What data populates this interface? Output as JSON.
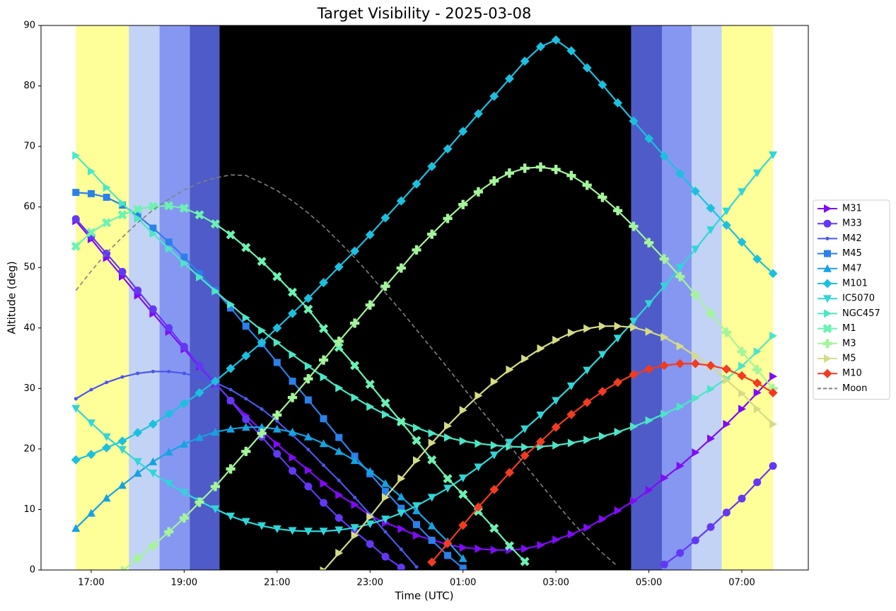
{
  "chart_data": {
    "type": "line",
    "title": "Target Visibility - 2025-03-08",
    "x_label": "Time (UTC)",
    "y_label": "Altitude (deg)",
    "xlim": [
      15.92,
      32.43
    ],
    "ylim": [
      0,
      90
    ],
    "xticks": [
      {
        "value": 17,
        "label": "17:00"
      },
      {
        "value": 19,
        "label": "19:00"
      },
      {
        "value": 21,
        "label": "21:00"
      },
      {
        "value": 23,
        "label": "23:00"
      },
      {
        "value": 25,
        "label": "01:00"
      },
      {
        "value": 27,
        "label": "03:00"
      },
      {
        "value": 29,
        "label": "05:00"
      },
      {
        "value": 31,
        "label": "07:00"
      }
    ],
    "yticks": [
      0,
      10,
      20,
      30,
      40,
      50,
      60,
      70,
      80,
      90
    ],
    "grid": false,
    "legend": "right",
    "shading": [
      {
        "start": 16.67,
        "end": 17.81,
        "color": "#ffff99"
      },
      {
        "start": 17.81,
        "end": 18.47,
        "color": "#c3d3f5"
      },
      {
        "start": 18.47,
        "end": 19.12,
        "color": "#8697f2"
      },
      {
        "start": 19.12,
        "end": 19.76,
        "color": "#4f5bc8"
      },
      {
        "start": 19.76,
        "end": 28.62,
        "color": "#000000"
      },
      {
        "start": 28.62,
        "end": 29.28,
        "color": "#4f5bc8"
      },
      {
        "start": 29.28,
        "end": 29.92,
        "color": "#8697f2"
      },
      {
        "start": 29.92,
        "end": 30.57,
        "color": "#c3d3f5"
      },
      {
        "start": 30.57,
        "end": 31.67,
        "color": "#ffff99"
      }
    ],
    "x": [
      16.67,
      17,
      17.33,
      17.67,
      18,
      18.33,
      18.67,
      19,
      19.33,
      19.67,
      20,
      20.33,
      20.67,
      21,
      21.33,
      21.67,
      22,
      22.33,
      22.67,
      23,
      23.33,
      23.67,
      24,
      24.33,
      24.67,
      25,
      25.33,
      25.67,
      26,
      26.33,
      26.67,
      27,
      27.33,
      27.67,
      28,
      28.33,
      28.67,
      29,
      29.33,
      29.67,
      30,
      30.33,
      30.67,
      31,
      31.33,
      31.67
    ],
    "series": [
      {
        "name": "M31",
        "color": "#7f0cf5",
        "marker": ">",
        "values": [
          57.7,
          54.7,
          51.6,
          48.5,
          45.4,
          42.4,
          39.4,
          36.5,
          33.6,
          30.8,
          28.1,
          25.5,
          23.0,
          20.8,
          18.6,
          16.5,
          14.3,
          12.4,
          10.8,
          9.0,
          7.8,
          6.8,
          5.7,
          5.0,
          4.2,
          3.7,
          3.5,
          3.3,
          3.3,
          3.5,
          4.1,
          5.0,
          5.9,
          7.0,
          8.4,
          9.8,
          11.4,
          13.2,
          15.2,
          17.2,
          19.4,
          21.7,
          24.1,
          26.6,
          29.3,
          32.0
        ]
      },
      {
        "name": "M33",
        "color": "#6338f5",
        "marker": "o",
        "values": [
          58.0,
          55.2,
          52.3,
          49.3,
          46.2,
          43.1,
          40.0,
          36.9,
          33.8,
          30.9,
          28.0,
          24.9,
          22.0,
          19.2,
          16.4,
          13.8,
          11.1,
          8.6,
          6.4,
          4.3,
          2.2,
          0.4,
          null,
          null,
          null,
          null,
          null,
          null,
          null,
          null,
          null,
          null,
          null,
          null,
          null,
          null,
          null,
          null,
          0.9,
          2.8,
          4.9,
          7.1,
          9.5,
          11.8,
          14.5,
          17.2
        ]
      },
      {
        "name": "M42",
        "color": "#4a56ea",
        "marker": ".",
        "values": [
          28.3,
          29.8,
          31.0,
          31.9,
          32.5,
          32.8,
          32.8,
          32.5,
          31.9,
          31.0,
          29.8,
          28.3,
          26.6,
          24.6,
          22.3,
          19.9,
          17.3,
          14.8,
          12.0,
          9.2,
          6.3,
          3.4,
          0.5,
          null,
          null,
          null,
          null,
          null,
          null,
          null,
          null,
          null,
          null,
          null,
          null,
          null,
          null,
          null,
          null,
          null,
          null,
          null,
          null,
          null,
          null,
          null
        ]
      },
      {
        "name": "M45",
        "color": "#2b80ea",
        "marker": "s",
        "values": [
          62.4,
          62.2,
          61.6,
          60.3,
          58.6,
          56.5,
          54.2,
          51.7,
          49.0,
          46.2,
          43.3,
          40.3,
          37.4,
          34.3,
          31.2,
          28.1,
          25.0,
          21.9,
          18.8,
          15.9,
          13.0,
          10.2,
          7.5,
          4.9,
          2.4,
          0.3,
          null,
          null,
          null,
          null,
          null,
          null,
          null,
          null,
          null,
          null,
          null,
          null,
          null,
          null,
          null,
          null,
          null,
          null,
          null,
          null
        ]
      },
      {
        "name": "M47",
        "color": "#16a2e2",
        "marker": "^",
        "values": [
          6.9,
          9.4,
          11.9,
          14.0,
          16.0,
          17.9,
          19.5,
          20.8,
          21.9,
          22.8,
          23.3,
          23.6,
          23.6,
          23.3,
          22.8,
          22.0,
          20.9,
          19.6,
          18.1,
          16.3,
          14.3,
          12.1,
          9.8,
          7.3,
          4.7,
          1.9,
          null,
          null,
          null,
          null,
          null,
          null,
          null,
          null,
          null,
          null,
          null,
          null,
          null,
          null,
          null,
          null,
          null,
          null,
          null,
          null
        ]
      },
      {
        "name": "M101",
        "color": "#1cc0df",
        "marker": "D",
        "values": [
          18.2,
          19.1,
          20.2,
          21.3,
          22.7,
          24.1,
          25.8,
          27.5,
          29.3,
          31.2,
          33.3,
          35.4,
          37.6,
          40.0,
          42.4,
          44.9,
          47.5,
          50.1,
          52.7,
          55.4,
          58.2,
          61.0,
          63.8,
          66.7,
          69.6,
          72.5,
          75.4,
          78.3,
          81.2,
          84.1,
          86.5,
          87.6,
          85.8,
          83.0,
          80.2,
          77.2,
          74.2,
          71.3,
          68.4,
          65.5,
          62.6,
          59.8,
          57.0,
          54.2,
          51.4,
          49.0
        ]
      },
      {
        "name": "IC5070",
        "color": "#30d6d8",
        "marker": "v",
        "values": [
          26.7,
          24.3,
          22.0,
          19.9,
          17.9,
          16.0,
          14.3,
          12.8,
          11.4,
          10.1,
          8.9,
          8.0,
          7.3,
          6.8,
          6.5,
          6.4,
          6.4,
          6.6,
          7.0,
          7.6,
          8.4,
          9.4,
          10.6,
          12.0,
          13.5,
          15.2,
          17.0,
          19.0,
          21.1,
          23.3,
          25.6,
          28.0,
          30.4,
          33.0,
          35.6,
          38.3,
          41.1,
          44.0,
          46.9,
          50.0,
          53.0,
          56.2,
          59.3,
          62.5,
          65.6,
          68.6
        ]
      },
      {
        "name": "NGC457",
        "color": "#4be6c6",
        "marker": ">",
        "values": [
          68.5,
          65.9,
          63.2,
          60.6,
          58.1,
          55.6,
          53.1,
          50.7,
          48.4,
          46.1,
          43.9,
          41.7,
          39.6,
          37.6,
          35.6,
          33.7,
          31.9,
          30.1,
          28.5,
          27.0,
          25.7,
          24.5,
          23.5,
          22.6,
          21.9,
          21.3,
          20.9,
          20.6,
          20.4,
          20.3,
          20.4,
          20.6,
          21.0,
          21.5,
          22.1,
          22.8,
          23.7,
          24.7,
          25.8,
          27.0,
          28.4,
          29.9,
          31.6,
          33.7,
          36.1,
          38.7
        ]
      },
      {
        "name": "M1",
        "color": "#6cf2b2",
        "marker": "X",
        "values": [
          53.5,
          55.8,
          57.4,
          58.7,
          59.6,
          60.1,
          60.2,
          59.8,
          58.7,
          57.2,
          55.4,
          53.3,
          51.0,
          48.5,
          45.9,
          43.1,
          39.9,
          36.8,
          33.8,
          30.7,
          27.6,
          24.5,
          21.4,
          18.2,
          15.1,
          12.5,
          9.7,
          6.9,
          4.0,
          1.4,
          null,
          null,
          null,
          null,
          null,
          null,
          null,
          null,
          null,
          null,
          null,
          null,
          null,
          null,
          null,
          null
        ]
      },
      {
        "name": "M3",
        "color": "#a4f59a",
        "marker": "P",
        "values": [
          null,
          null,
          null,
          -0.2,
          1.9,
          4.0,
          6.3,
          8.6,
          11.2,
          13.8,
          16.7,
          19.6,
          22.6,
          25.6,
          28.5,
          31.6,
          34.7,
          37.8,
          40.8,
          43.8,
          46.9,
          49.9,
          52.9,
          55.5,
          58.1,
          60.4,
          62.5,
          64.3,
          65.6,
          66.4,
          66.6,
          66.2,
          65.2,
          63.6,
          61.6,
          59.4,
          56.8,
          54.1,
          51.4,
          48.5,
          45.5,
          42.4,
          39.3,
          36.1,
          33.1,
          30.0
        ]
      },
      {
        "name": "M5",
        "color": "#d5dc86",
        "marker": ">",
        "values": [
          null,
          null,
          null,
          null,
          null,
          null,
          null,
          null,
          null,
          null,
          null,
          null,
          null,
          null,
          null,
          null,
          -0.1,
          2.8,
          5.7,
          8.8,
          12.0,
          15.1,
          18.1,
          21.0,
          23.8,
          26.4,
          28.8,
          31.1,
          33.1,
          34.9,
          36.6,
          38.0,
          39.2,
          39.9,
          40.3,
          40.3,
          40.1,
          39.4,
          38.5,
          37.0,
          35.4,
          33.7,
          31.4,
          29.2,
          26.6,
          24.1
        ]
      },
      {
        "name": "M10",
        "color": "#f23b20",
        "marker": "D",
        "values": [
          null,
          null,
          null,
          null,
          null,
          null,
          null,
          null,
          null,
          null,
          null,
          null,
          null,
          null,
          null,
          null,
          null,
          null,
          null,
          null,
          null,
          null,
          null,
          1.3,
          4.4,
          7.4,
          10.4,
          13.3,
          16.1,
          18.9,
          21.2,
          23.6,
          25.7,
          27.7,
          29.5,
          31.0,
          32.3,
          33.2,
          33.8,
          34.1,
          34.1,
          33.8,
          33.2,
          32.1,
          30.9,
          29.3
        ]
      },
      {
        "name": "Moon",
        "color": "#808080",
        "dash": true,
        "values": [
          46.2,
          49.4,
          52.4,
          55.0,
          57.4,
          59.5,
          61.3,
          62.8,
          64.0,
          64.8,
          65.3,
          65.2,
          64.0,
          62.7,
          61.0,
          59.0,
          56.8,
          54.3,
          51.6,
          48.8,
          45.8,
          42.8,
          39.7,
          36.6,
          33.4,
          30.2,
          27.0,
          23.8,
          20.6,
          17.4,
          14.2,
          11.1,
          8.1,
          5.3,
          2.8,
          0.6,
          null,
          null,
          null,
          null,
          null,
          null,
          null,
          null,
          null,
          null
        ]
      }
    ]
  }
}
